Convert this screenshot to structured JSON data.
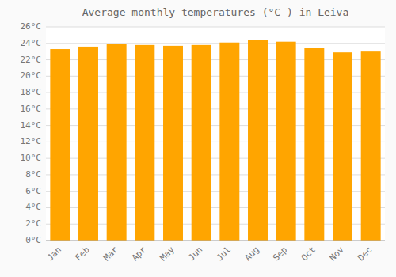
{
  "chart_data": {
    "type": "bar",
    "title": "Average monthly temperatures (°C ) in Leiva",
    "categories": [
      "Jan",
      "Feb",
      "Mar",
      "Apr",
      "May",
      "Jun",
      "Jul",
      "Aug",
      "Sep",
      "Oct",
      "Nov",
      "Dec"
    ],
    "values": [
      23.3,
      23.6,
      23.9,
      23.8,
      23.7,
      23.8,
      24.1,
      24.4,
      24.2,
      23.4,
      22.9,
      23.0
    ],
    "color": "#FFA500",
    "ylim": [
      0,
      26
    ],
    "yticks": [
      {
        "value": 0,
        "label": "0°C"
      },
      {
        "value": 2,
        "label": "2°C"
      },
      {
        "value": 4,
        "label": "4°C"
      },
      {
        "value": 6,
        "label": "6°C"
      },
      {
        "value": 8,
        "label": "8°C"
      },
      {
        "value": 10,
        "label": "10°C"
      },
      {
        "value": 12,
        "label": "12°C"
      },
      {
        "value": 14,
        "label": "14°C"
      },
      {
        "value": 16,
        "label": "16°C"
      },
      {
        "value": 18,
        "label": "18°C"
      },
      {
        "value": 20,
        "label": "20°C"
      },
      {
        "value": 22,
        "label": "22°C"
      },
      {
        "value": 24,
        "label": "24°C"
      },
      {
        "value": 26,
        "label": "26°C"
      }
    ],
    "grid": true
  }
}
